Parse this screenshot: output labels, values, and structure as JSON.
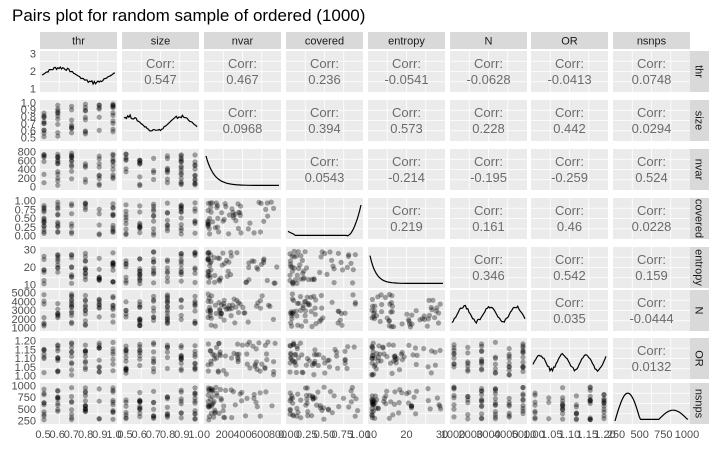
{
  "chart_data": {
    "type": "scatter",
    "subtype": "pairs-matrix",
    "title": "Pairs plot for random sample of ordered (1000)",
    "variables": [
      "thr",
      "size",
      "nvar",
      "covered",
      "entropy",
      "N",
      "OR",
      "nsnps"
    ],
    "corr_label": "Corr:",
    "correlations": [
      [
        "",
        "0.547",
        "0.467",
        "0.236",
        "-0.0541",
        "-0.0628",
        "-0.0413",
        "0.0748"
      ],
      [
        "",
        "",
        "0.0968",
        "0.394",
        "0.573",
        "0.228",
        "0.442",
        "0.0294"
      ],
      [
        "",
        "",
        "",
        "0.0543",
        "-0.214",
        "-0.195",
        "-0.259",
        "0.524"
      ],
      [
        "",
        "",
        "",
        "",
        "0.219",
        "0.161",
        "0.46",
        "0.0228"
      ],
      [
        "",
        "",
        "",
        "",
        "",
        "0.346",
        "0.542",
        "0.159"
      ],
      [
        "",
        "",
        "",
        "",
        "",
        "",
        "0.035",
        "-0.0444"
      ],
      [
        "",
        "",
        "",
        "",
        "",
        "",
        "",
        "0.0132"
      ],
      [
        "",
        "",
        "",
        "",
        "",
        "",
        "",
        ""
      ]
    ],
    "y_ticks": [
      [
        "1",
        "2",
        "3"
      ],
      [
        "0.5",
        "0.6",
        "0.7",
        "0.8",
        "0.9",
        "1.0"
      ],
      [
        "0",
        "200",
        "400",
        "600",
        "800"
      ],
      [
        "0.00",
        "0.25",
        "0.50",
        "0.75",
        "1.00"
      ],
      [
        "10",
        "20",
        "30"
      ],
      [
        "1000",
        "2000",
        "3000",
        "4000",
        "5000"
      ],
      [
        "1.00",
        "1.05",
        "1.10",
        "1.15",
        "1.20"
      ],
      [
        "250",
        "500",
        "750",
        "1000"
      ]
    ],
    "x_ticks": [
      [
        "0.5",
        "0.6",
        "0.7",
        "0.8",
        "0.9",
        "1.0"
      ],
      [
        "0.5",
        "0.6",
        "0.7",
        "0.8",
        "0.9",
        "1.0"
      ],
      [
        "0",
        "200",
        "400",
        "600",
        "800"
      ],
      [
        "0.00",
        "0.25",
        "0.50",
        "0.75",
        "1.00"
      ],
      [
        "10",
        "20",
        "30"
      ],
      [
        "1000",
        "2000",
        "3000",
        "4000",
        "5000"
      ],
      [
        "1.00",
        "1.05",
        "1.10",
        "1.15",
        "1.20"
      ],
      [
        "250",
        "500",
        "750",
        "1000"
      ]
    ],
    "grid": true,
    "colors": {
      "panel_bg": "#ebebeb",
      "strip_bg": "#d9d9d9",
      "grid": "#ffffff",
      "points": "#000000",
      "text": "#1a1a1a",
      "corr_text": "#6b6b6b"
    }
  }
}
